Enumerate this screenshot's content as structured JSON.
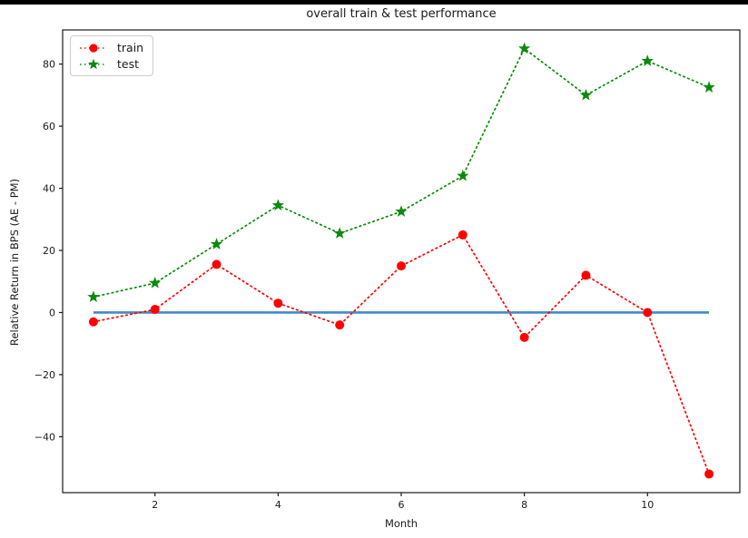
{
  "window": {
    "top_edge_color": "#000000",
    "background": "#ffffff"
  },
  "chart_data": {
    "type": "line",
    "title": "overall train & test performance",
    "xlabel": "Month",
    "ylabel": "Relative Return in BPS (AE - PM)",
    "x": [
      1,
      2,
      3,
      4,
      5,
      6,
      7,
      8,
      9,
      10,
      11
    ],
    "series": [
      {
        "name": "train",
        "color": "#ff0000",
        "marker": "circle",
        "linestyle": "dotted",
        "values": [
          -3,
          1,
          15.5,
          3,
          -4,
          15,
          25,
          -8,
          12,
          0,
          -52
        ]
      },
      {
        "name": "test",
        "color": "#0a8a0a",
        "marker": "star",
        "linestyle": "dotted",
        "values": [
          5,
          9.5,
          22,
          34.5,
          25.5,
          32.5,
          44,
          85,
          70,
          81,
          72.5
        ]
      }
    ],
    "baseline": {
      "y": 0,
      "x_start": 1,
      "x_end": 11,
      "color": "#4489c4",
      "width": 2.6
    },
    "xlim": [
      0.5,
      11.5
    ],
    "ylim": [
      -58,
      91
    ],
    "xticks": [
      2,
      4,
      6,
      8,
      10
    ],
    "yticks": [
      -40,
      -20,
      0,
      20,
      40,
      60,
      80
    ],
    "grid": false,
    "legend": {
      "position": "upper left",
      "entries": [
        "train",
        "test"
      ]
    },
    "axes_color": "#1a1a1a"
  }
}
